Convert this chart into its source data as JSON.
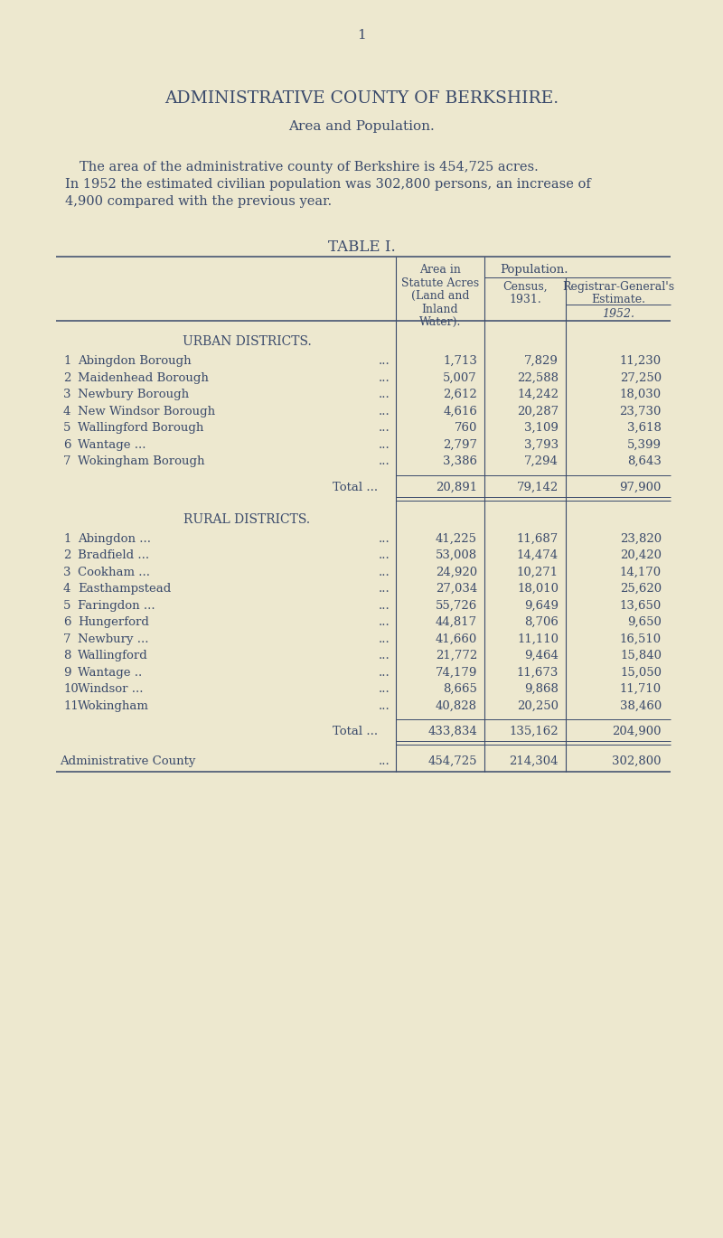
{
  "bg_color": "#ede8cf",
  "text_color": "#3a4a6b",
  "page_number": "1",
  "main_title": "ADMINISTRATIVE COUNTY OF BERKSHIRE.",
  "subtitle": "Area and Population.",
  "intro_line1": "The area of the administrative county of Berkshire is 454,725 acres.",
  "intro_line2": "In 1952 the estimated civilian population was 302,800 persons, an increase of",
  "intro_line3": "4,900 compared with the previous year.",
  "table_title": "TABLE I.",
  "col_area_lines": [
    "Area in",
    "Statute Acres",
    "(Land and",
    "Inland",
    "Water)."
  ],
  "col_census_lines": [
    "Census,",
    "1931."
  ],
  "col_pop_label": "Population.",
  "col_est_lines": [
    "Registrar-General's",
    "Estimate."
  ],
  "col_year": "1952.",
  "section1_title": "URBAN DISTRICTS.",
  "urban_rows": [
    {
      "num": "1",
      "name": "Abingdon Borough",
      "dots": "...",
      "area": "1,713",
      "census": "7,829",
      "est": "11,230"
    },
    {
      "num": "2",
      "name": "Maidenhead Borough",
      "dots": "...",
      "area": "5,007",
      "census": "22,588",
      "est": "27,250"
    },
    {
      "num": "3",
      "name": "Newbury Borough",
      "dots": "...",
      "area": "2,612",
      "census": "14,242",
      "est": "18,030"
    },
    {
      "num": "4",
      "name": "New Windsor Borough",
      "dots": "...",
      "area": "4,616",
      "census": "20,287",
      "est": "23,730"
    },
    {
      "num": "5",
      "name": "Wallingford Borough",
      "dots": "...",
      "area": "760",
      "census": "3,109",
      "est": "3,618"
    },
    {
      "num": "6",
      "name": "Wantage ...",
      "dots": "...",
      "area": "2,797",
      "census": "3,793",
      "est": "5,399"
    },
    {
      "num": "7",
      "name": "Wokingham Borough",
      "dots": "...",
      "area": "3,386",
      "census": "7,294",
      "est": "8,643"
    }
  ],
  "urban_total": {
    "label": "Total ...",
    "dots": "...",
    "area": "20,891",
    "census": "79,142",
    "est": "97,900"
  },
  "section2_title": "RURAL DISTRICTS.",
  "rural_rows": [
    {
      "num": "1",
      "name": "Abingdon ...",
      "dots": "...",
      "area": "41,225",
      "census": "11,687",
      "est": "23,820"
    },
    {
      "num": "2",
      "name": "Bradfield ...",
      "dots": "...",
      "area": "53,008",
      "census": "14,474",
      "est": "20,420"
    },
    {
      "num": "3",
      "name": "Cookham ...",
      "dots": "...",
      "area": "24,920",
      "census": "10,271",
      "est": "14,170"
    },
    {
      "num": "4",
      "name": "Easthampstead",
      "dots": "...",
      "area": "27,034",
      "census": "18,010",
      "est": "25,620"
    },
    {
      "num": "5",
      "name": "Faringdon ...",
      "dots": "...",
      "area": "55,726",
      "census": "9,649",
      "est": "13,650"
    },
    {
      "num": "6",
      "name": "Hungerford",
      "dots": "...",
      "area": "44,817",
      "census": "8,706",
      "est": "9,650"
    },
    {
      "num": "7",
      "name": "Newbury ...",
      "dots": "...",
      "area": "41,660",
      "census": "11,110",
      "est": "16,510"
    },
    {
      "num": "8",
      "name": "Wallingford",
      "dots": "...",
      "area": "21,772",
      "census": "9,464",
      "est": "15,840"
    },
    {
      "num": "9",
      "name": "Wantage ..",
      "dots": "...",
      "area": "74,179",
      "census": "11,673",
      "est": "15,050"
    },
    {
      "num": "10",
      "name": "Windsor ...",
      "dots": "...",
      "area": "8,665",
      "census": "9,868",
      "est": "11,710"
    },
    {
      "num": "11",
      "name": "Wokingham",
      "dots": "...",
      "area": "40,828",
      "census": "20,250",
      "est": "38,460"
    }
  ],
  "rural_total": {
    "label": "Total ...",
    "dots": "...",
    "area": "433,834",
    "census": "135,162",
    "est": "204,900"
  },
  "admin_row": {
    "label": "Administrative County",
    "dots": "...",
    "area": "454,725",
    "census": "214,304",
    "est": "302,800"
  }
}
